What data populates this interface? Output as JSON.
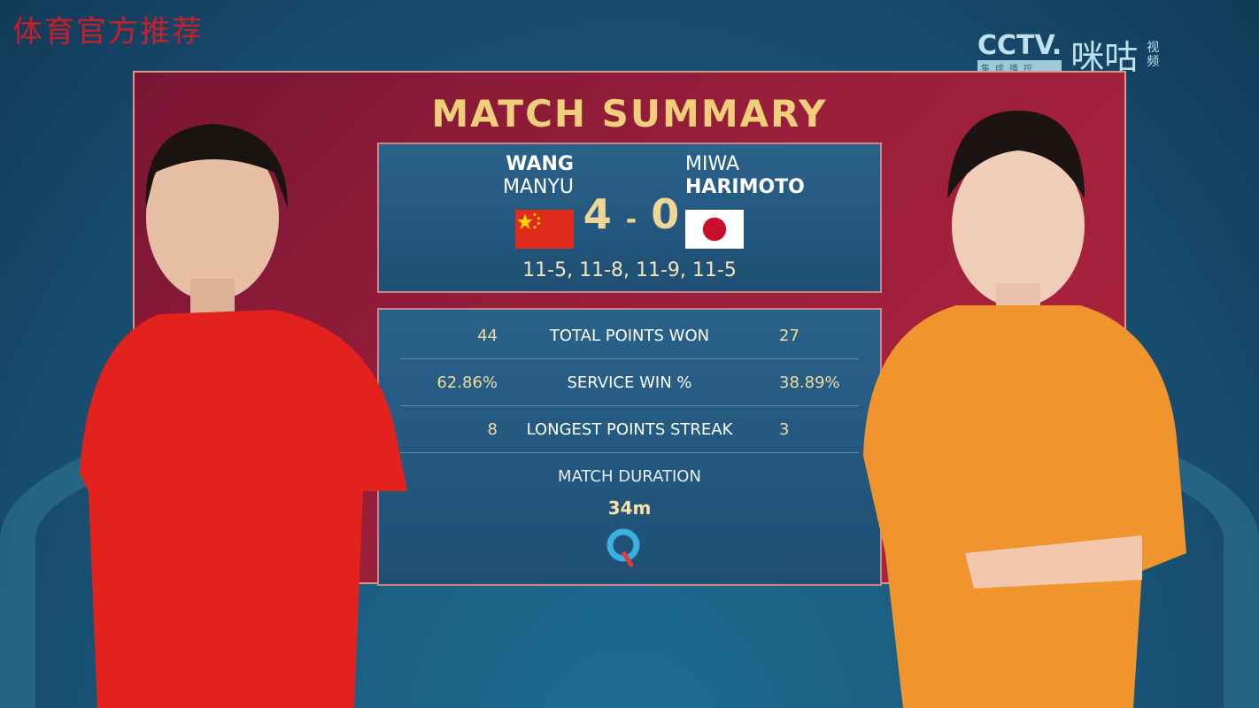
{
  "watermark": "体育官方推荐",
  "broadcaster": {
    "cctv": "CCTV.",
    "cctv_sub": "集成播控",
    "migu": "咪咕",
    "migu_sub": "视频"
  },
  "title": "MATCH SUMMARY",
  "player1": {
    "first": "WANG",
    "last": "MANYU",
    "country": "China",
    "flag": "cn-flag-icon"
  },
  "player2": {
    "first": "MIWA",
    "last": "HARIMOTO",
    "country": "Japan",
    "flag": "jp-flag-icon"
  },
  "score": {
    "p1": "4",
    "sep": "-",
    "p2": "0"
  },
  "games": "11-5, 11-8, 11-9, 11-5",
  "stats": [
    {
      "label": "TOTAL POINTS WON",
      "p1": "44",
      "p2": "27"
    },
    {
      "label": "SERVICE WIN %",
      "p1": "62.86%",
      "p2": "38.89%"
    },
    {
      "label": "LONGEST POINTS STREAK",
      "p1": "8",
      "p2": "3"
    }
  ],
  "duration": {
    "label": "MATCH DURATION",
    "value": "34m"
  },
  "colors": {
    "gold": "#f1cf7a",
    "panel": "#9b1f3b",
    "box": "#245a80"
  }
}
